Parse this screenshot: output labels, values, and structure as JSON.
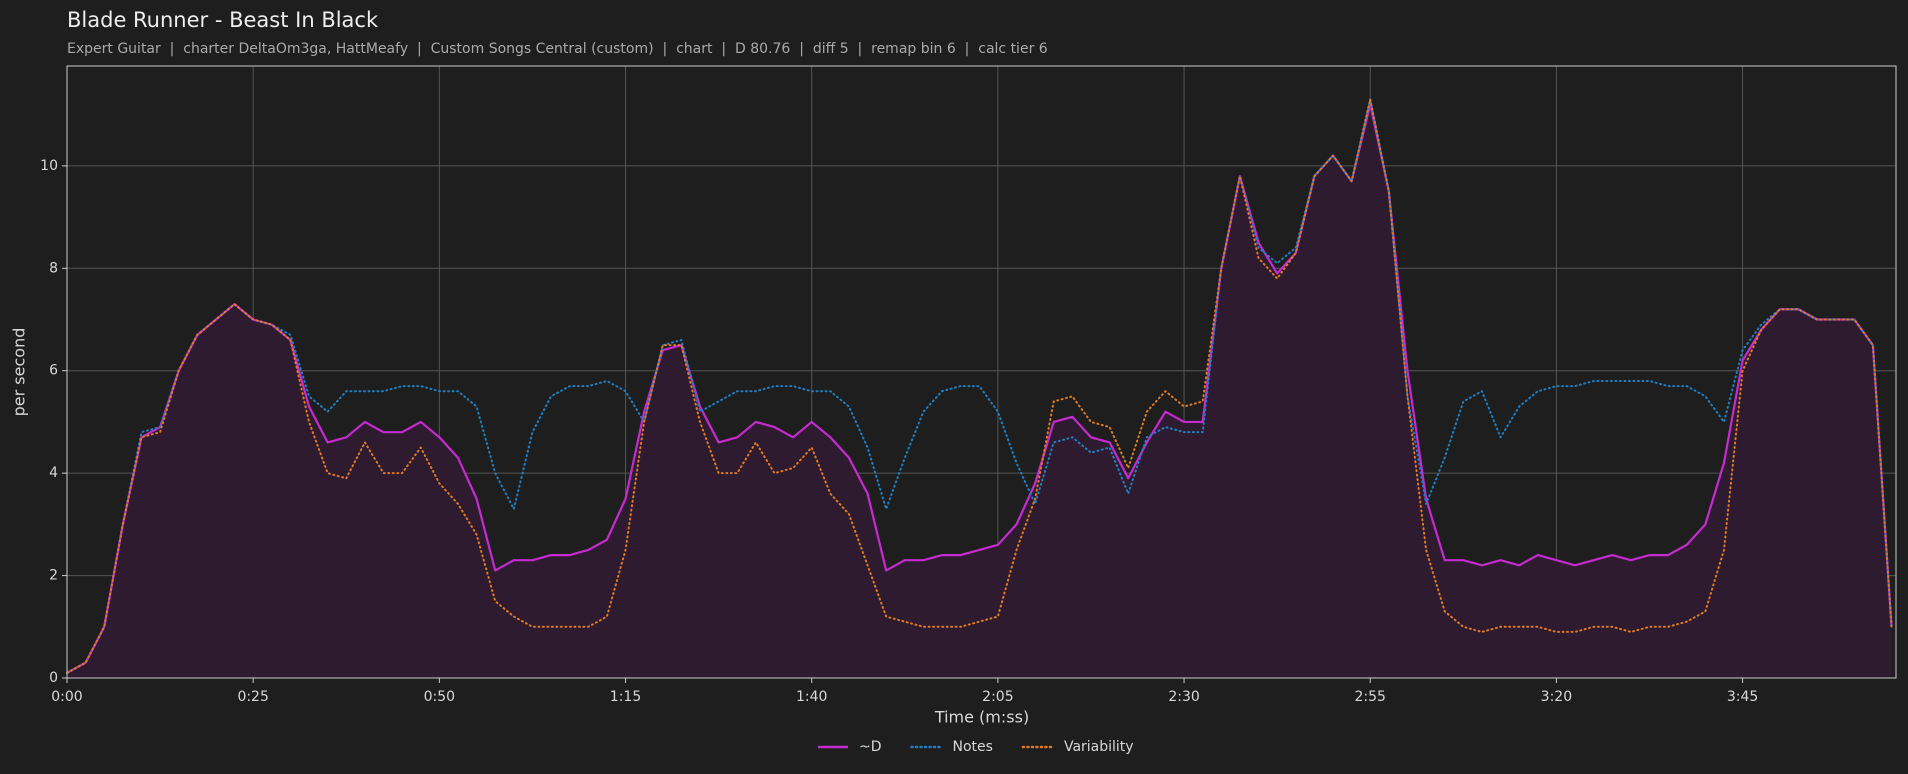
{
  "chart_data": {
    "type": "line",
    "title": "Blade Runner - Beast In Black",
    "subtitle": "Expert Guitar  |  charter DeltaOm3ga, HattMeafy  |  Custom Songs Central (custom)  |  chart  |  D 80.76  |  diff 5  |  remap bin 6  |  calc tier 6",
    "xlabel": "Time (m:ss)",
    "ylabel": "per second",
    "x": [
      0,
      2.5,
      5,
      7.5,
      10,
      12.5,
      15,
      17.5,
      20,
      22.5,
      25,
      27.5,
      30,
      32.5,
      35,
      37.5,
      40,
      42.5,
      45,
      47.5,
      50,
      52.5,
      55,
      57.5,
      60,
      62.5,
      65,
      67.5,
      70,
      72.5,
      75,
      77.5,
      80,
      82.5,
      85,
      87.5,
      90,
      92.5,
      95,
      97.5,
      100,
      102.5,
      105,
      107.5,
      110,
      112.5,
      115,
      117.5,
      120,
      122.5,
      125,
      127.5,
      130,
      132.5,
      135,
      137.5,
      140,
      142.5,
      145,
      147.5,
      150,
      152.5,
      155,
      157.5,
      160,
      162.5,
      165,
      167.5,
      170,
      172.5,
      175,
      177.5,
      180,
      182.5,
      185,
      187.5,
      190,
      192.5,
      195,
      197.5,
      200,
      202.5,
      205,
      207.5,
      210,
      212.5,
      215,
      217.5,
      220,
      222.5,
      225,
      227.5,
      230,
      232.5,
      235,
      237.5,
      240,
      242.5,
      245
    ],
    "series": [
      {
        "name": "~D",
        "color": "#c62ad0",
        "style": "solid",
        "fill": "#2e1b2f",
        "values": [
          0.1,
          0.3,
          1.0,
          3.0,
          4.7,
          4.9,
          6.0,
          6.7,
          7.0,
          7.3,
          7.0,
          6.9,
          6.6,
          5.3,
          4.6,
          4.7,
          5.0,
          4.8,
          4.8,
          5.0,
          4.7,
          4.3,
          3.5,
          2.1,
          2.3,
          2.3,
          2.4,
          2.4,
          2.5,
          2.7,
          3.5,
          5.2,
          6.4,
          6.5,
          5.3,
          4.6,
          4.7,
          5.0,
          4.9,
          4.7,
          5.0,
          4.7,
          4.3,
          3.6,
          2.1,
          2.3,
          2.3,
          2.4,
          2.4,
          2.5,
          2.6,
          3.0,
          3.8,
          5.0,
          5.1,
          4.7,
          4.6,
          3.9,
          4.6,
          5.2,
          5.0,
          5.0,
          8.0,
          9.8,
          8.5,
          7.9,
          8.3,
          9.8,
          10.2,
          9.7,
          11.2,
          9.5,
          6.0,
          3.5,
          2.3,
          2.3,
          2.2,
          2.3,
          2.2,
          2.4,
          2.3,
          2.2,
          2.3,
          2.4,
          2.3,
          2.4,
          2.4,
          2.6,
          3.0,
          4.2,
          6.2,
          6.8,
          7.2,
          7.2,
          7.0,
          7.0,
          7.0,
          6.5,
          1.0
        ]
      },
      {
        "name": "Notes",
        "color": "#1f7fc4",
        "style": "dotted",
        "values": [
          0.1,
          0.3,
          1.0,
          3.0,
          4.8,
          4.9,
          6.0,
          6.7,
          7.0,
          7.3,
          7.0,
          6.9,
          6.7,
          5.5,
          5.2,
          5.6,
          5.6,
          5.6,
          5.7,
          5.7,
          5.6,
          5.6,
          5.3,
          4.0,
          3.3,
          4.8,
          5.5,
          5.7,
          5.7,
          5.8,
          5.6,
          5.0,
          6.5,
          6.6,
          5.2,
          5.4,
          5.6,
          5.6,
          5.7,
          5.7,
          5.6,
          5.6,
          5.3,
          4.5,
          3.3,
          4.3,
          5.2,
          5.6,
          5.7,
          5.7,
          5.2,
          4.2,
          3.4,
          4.6,
          4.7,
          4.4,
          4.5,
          3.6,
          4.7,
          4.9,
          4.8,
          4.8,
          8.0,
          9.8,
          8.4,
          8.1,
          8.4,
          9.8,
          10.2,
          9.7,
          11.3,
          9.5,
          5.5,
          3.4,
          4.3,
          5.4,
          5.6,
          4.7,
          5.3,
          5.6,
          5.7,
          5.7,
          5.8,
          5.8,
          5.8,
          5.8,
          5.7,
          5.7,
          5.5,
          5.0,
          6.4,
          6.9,
          7.2,
          7.2,
          7.0,
          7.0,
          7.0,
          6.5,
          1.0
        ]
      },
      {
        "name": "Variability",
        "color": "#e07b22",
        "style": "dotted",
        "values": [
          0.1,
          0.3,
          1.0,
          3.0,
          4.7,
          4.8,
          6.0,
          6.7,
          7.0,
          7.3,
          7.0,
          6.9,
          6.6,
          5.0,
          4.0,
          3.9,
          4.6,
          4.0,
          4.0,
          4.5,
          3.8,
          3.4,
          2.8,
          1.5,
          1.2,
          1.0,
          1.0,
          1.0,
          1.0,
          1.2,
          2.5,
          5.0,
          6.5,
          6.5,
          5.0,
          4.0,
          4.0,
          4.6,
          4.0,
          4.1,
          4.5,
          3.6,
          3.2,
          2.2,
          1.2,
          1.1,
          1.0,
          1.0,
          1.0,
          1.1,
          1.2,
          2.5,
          3.5,
          5.4,
          5.5,
          5.0,
          4.9,
          4.1,
          5.2,
          5.6,
          5.3,
          5.4,
          8.0,
          9.8,
          8.2,
          7.8,
          8.3,
          9.8,
          10.2,
          9.7,
          11.3,
          9.5,
          5.5,
          2.5,
          1.3,
          1.0,
          0.9,
          1.0,
          1.0,
          1.0,
          0.9,
          0.9,
          1.0,
          1.0,
          0.9,
          1.0,
          1.0,
          1.1,
          1.3,
          2.5,
          6.0,
          6.8,
          7.2,
          7.2,
          7.0,
          7.0,
          7.0,
          6.5,
          1.0
        ]
      }
    ],
    "xlim": [
      0,
      245.6
    ],
    "ylim": [
      0,
      11.95
    ],
    "xticks": [
      {
        "value": 0,
        "label": "0:00"
      },
      {
        "value": 25,
        "label": "0:25"
      },
      {
        "value": 50,
        "label": "0:50"
      },
      {
        "value": 75,
        "label": "1:15"
      },
      {
        "value": 100,
        "label": "1:40"
      },
      {
        "value": 125,
        "label": "2:05"
      },
      {
        "value": 150,
        "label": "2:30"
      },
      {
        "value": 175,
        "label": "2:55"
      },
      {
        "value": 200,
        "label": "3:20"
      },
      {
        "value": 225,
        "label": "3:45"
      }
    ],
    "yticks": [
      0,
      2,
      4,
      6,
      8,
      10
    ],
    "grid": true,
    "legend": "bottom"
  }
}
